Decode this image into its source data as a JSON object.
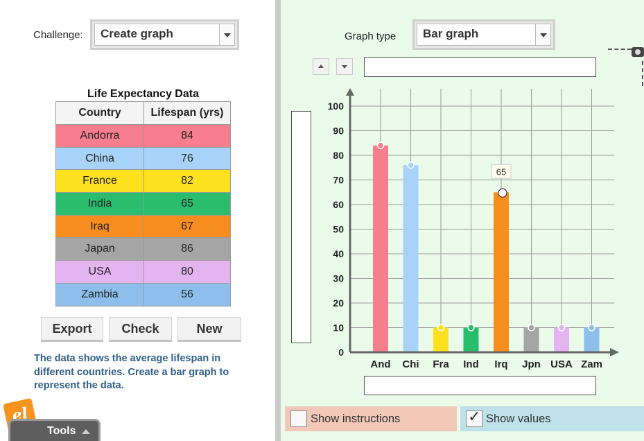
{
  "left_panel": {
    "challenge_label": "Challenge:",
    "challenge_value": "Create graph",
    "table_title": "Life Expectancy Data",
    "headers": [
      "Country",
      "Lifespan (yrs)"
    ],
    "rows": [
      {
        "country": "Andorra",
        "lifespan": "84",
        "color": "#f77e8c"
      },
      {
        "country": "China",
        "lifespan": "76",
        "color": "#a6d3f7"
      },
      {
        "country": "France",
        "lifespan": "82",
        "color": "#fde11e"
      },
      {
        "country": "India",
        "lifespan": "65",
        "color": "#2bbd6e"
      },
      {
        "country": "Iraq",
        "lifespan": "67",
        "color": "#f88d1f"
      },
      {
        "country": "Japan",
        "lifespan": "86",
        "color": "#a5a5a5"
      },
      {
        "country": "USA",
        "lifespan": "80",
        "color": "#e4b4f0"
      },
      {
        "country": "Zambia",
        "lifespan": "56",
        "color": "#8ebfec"
      }
    ],
    "buttons": {
      "export": "Export",
      "check": "Check",
      "new": "New"
    },
    "instructions": "The data shows the average lifespan in different countries. Create a bar graph to represent the data.",
    "logo_text": "el",
    "tools_label": "Tools"
  },
  "right_panel": {
    "graph_type_label": "Graph type",
    "graph_type_value": "Bar graph",
    "show_instructions_label": "Show instructions",
    "show_values_label": "Show values",
    "show_instructions_checked": false,
    "show_values_checked": true,
    "check_mark": "✓"
  },
  "chart_data": {
    "type": "bar",
    "categories": [
      "And",
      "Chi",
      "Fra",
      "Ind",
      "Irq",
      "Jpn",
      "USA",
      "Zam"
    ],
    "values": [
      84,
      76,
      10,
      10,
      65,
      10,
      10,
      10
    ],
    "colors": [
      "#f77e8c",
      "#a6d3f7",
      "#fde11e",
      "#2bbd6e",
      "#f88d1f",
      "#a5a5a5",
      "#e4b4f0",
      "#8ebfec"
    ],
    "yticks": [
      0,
      10,
      20,
      30,
      40,
      50,
      60,
      70,
      80,
      90,
      100
    ],
    "ylim": [
      0,
      100
    ],
    "grid": true,
    "tooltip": {
      "category": "Irq",
      "text": "65"
    }
  }
}
